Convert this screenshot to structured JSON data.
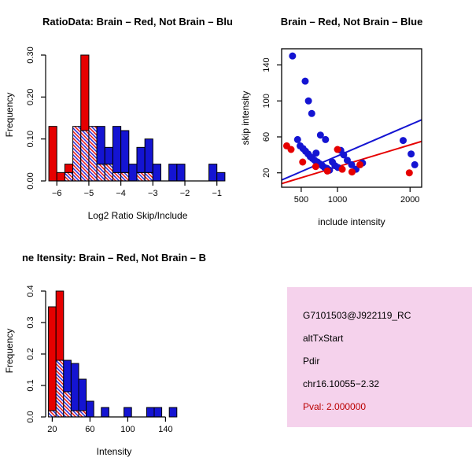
{
  "app": {
    "background": "#ffffff"
  },
  "colors": {
    "brain_red": "#e60000",
    "not_brain_blue": "#1414d2",
    "axis_black": "#000000"
  },
  "chart_data": [
    {
      "id": "hist-log-ratio",
      "type": "bar",
      "variant": "overlaid-histogram",
      "title": "RatioData: Brain – Red, Not Brain – Blu",
      "xlabel": "Log2 Ratio Skip/Include",
      "ylabel": "Frequency",
      "xlim": [
        -6.35,
        -0.6
      ],
      "ylim": [
        0,
        0.315
      ],
      "xticks": [
        -6,
        -5,
        -4,
        -3,
        -2,
        -1
      ],
      "xtick_labels": [
        "−6",
        "−5",
        "−4",
        "−3",
        "−2",
        "−1"
      ],
      "yticks": [
        0,
        0.1,
        0.2,
        0.3
      ],
      "ytick_labels": [
        "0.00",
        "0.10",
        "0.20",
        "0.30"
      ],
      "grid": false,
      "legend": "none",
      "bin_start": -6.25,
      "bin_width": 0.25,
      "series": [
        {
          "name": "Brain",
          "color": "#e60000",
          "values": [
            0.13,
            0.02,
            0.04,
            0.13,
            0.3,
            0.13,
            0.04,
            0.04,
            0.02,
            0.02,
            0,
            0.02,
            0.02,
            0,
            0,
            0,
            0,
            0,
            0,
            0,
            0,
            0
          ]
        },
        {
          "name": "Not Brain",
          "color": "#1414d2",
          "values": [
            0,
            0,
            0.02,
            0.13,
            0.12,
            0.13,
            0.13,
            0.08,
            0.13,
            0.12,
            0.04,
            0.08,
            0.1,
            0.04,
            0,
            0.04,
            0.04,
            0,
            0,
            0,
            0.04,
            0.02
          ]
        }
      ]
    },
    {
      "id": "scatter-intensity",
      "type": "scatter",
      "title": "Brain – Red, Not Brain – Blue",
      "xlabel": "include intensity",
      "ylabel": "skip intensity",
      "xlim": [
        230,
        2160
      ],
      "ylim": [
        4,
        158
      ],
      "xticks": [
        500,
        1000,
        2000
      ],
      "yticks": [
        20,
        60,
        100,
        140
      ],
      "grid": false,
      "legend": "none",
      "series": [
        {
          "name": "Not Brain",
          "color": "#1414d2",
          "points": [
            [
              380,
              150
            ],
            [
              555,
              122
            ],
            [
              600,
              100
            ],
            [
              645,
              86
            ],
            [
              450,
              57
            ],
            [
              485,
              50
            ],
            [
              525,
              47
            ],
            [
              560,
              44
            ],
            [
              595,
              41
            ],
            [
              625,
              38
            ],
            [
              655,
              36
            ],
            [
              685,
              34
            ],
            [
              705,
              42
            ],
            [
              725,
              32
            ],
            [
              755,
              30
            ],
            [
              790,
              28
            ],
            [
              820,
              26
            ],
            [
              855,
              25
            ],
            [
              890,
              23
            ],
            [
              930,
              32
            ],
            [
              965,
              28
            ],
            [
              1005,
              26
            ],
            [
              1045,
              45
            ],
            [
              1085,
              40
            ],
            [
              1135,
              34
            ],
            [
              1195,
              29
            ],
            [
              1255,
              24
            ],
            [
              1345,
              31
            ],
            [
              1905,
              56
            ],
            [
              2015,
              41
            ],
            [
              2065,
              29
            ],
            [
              765,
              62
            ],
            [
              835,
              57
            ]
          ]
        },
        {
          "name": "Brain",
          "color": "#e60000",
          "points": [
            [
              300,
              50
            ],
            [
              360,
              46
            ],
            [
              520,
              32
            ],
            [
              700,
              27
            ],
            [
              860,
              22
            ],
            [
              1000,
              46
            ],
            [
              1065,
              24
            ],
            [
              1200,
              21
            ],
            [
              1310,
              29
            ],
            [
              1990,
              20
            ]
          ]
        }
      ],
      "fit_lines": [
        {
          "name": "not-brain-fit",
          "color": "#1414d2",
          "x1": 230,
          "y1": 12,
          "x2": 2160,
          "y2": 79
        },
        {
          "name": "brain-fit",
          "color": "#e60000",
          "x1": 230,
          "y1": 8,
          "x2": 2160,
          "y2": 55
        }
      ]
    },
    {
      "id": "hist-intensity",
      "type": "bar",
      "variant": "overlaid-histogram",
      "title": "ne Itensity: Brain – Red, Not Brain – B",
      "xlabel": "Intensity",
      "ylabel": "Frequency",
      "xlim": [
        13,
        158
      ],
      "ylim": [
        0,
        0.42
      ],
      "xticks": [
        20,
        60,
        100,
        140
      ],
      "xtick_labels": [
        "20",
        "60",
        "100",
        "140"
      ],
      "yticks": [
        0,
        0.1,
        0.2,
        0.3,
        0.4
      ],
      "ytick_labels": [
        "0.0",
        "0.1",
        "0.2",
        "0.3",
        "0.4"
      ],
      "grid": false,
      "legend": "none",
      "bin_start": 16,
      "bin_width": 8,
      "series": [
        {
          "name": "Brain",
          "color": "#e60000",
          "values": [
            0.35,
            0.4,
            0.08,
            0.02,
            0.02,
            0,
            0,
            0,
            0,
            0,
            0,
            0,
            0,
            0,
            0,
            0,
            0
          ]
        },
        {
          "name": "Not Brain",
          "color": "#1414d2",
          "values": [
            0.02,
            0.18,
            0.18,
            0.17,
            0.12,
            0.05,
            0,
            0.03,
            0,
            0,
            0.03,
            0,
            0,
            0.03,
            0.03,
            0,
            0.03
          ]
        }
      ]
    }
  ],
  "info_box": {
    "background": "#f5d2ec",
    "lines": [
      {
        "text": "G7101503@J922119_RC",
        "color": "#000000"
      },
      {
        "text": "altTxStart",
        "color": "#000000"
      },
      {
        "text": "Pdir",
        "color": "#000000"
      },
      {
        "text": "chr16.10055−2.32",
        "color": "#000000"
      },
      {
        "text": "Pval: 2.000000",
        "color": "#bb0000"
      }
    ]
  }
}
